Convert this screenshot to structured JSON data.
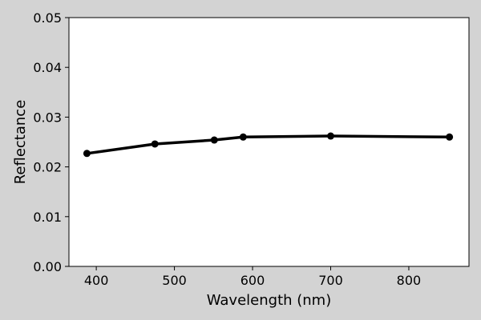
{
  "chart_data": {
    "type": "line",
    "title": "",
    "xlabel": "Wavelength (nm)",
    "ylabel": "Reflectance",
    "xlim": [
      365,
      877
    ],
    "ylim": [
      0.0,
      0.05
    ],
    "xticks": [
      400,
      500,
      600,
      700,
      800
    ],
    "xtick_labels": [
      "400",
      "500",
      "600",
      "700",
      "800"
    ],
    "yticks": [
      0.0,
      0.01,
      0.02,
      0.03,
      0.04,
      0.05
    ],
    "ytick_labels": [
      "0.00",
      "0.01",
      "0.02",
      "0.03",
      "0.04",
      "0.05"
    ],
    "grid": false,
    "series": [
      {
        "x": [
          388,
          475,
          551,
          588,
          700,
          852
        ],
        "y": [
          0.0227,
          0.0246,
          0.0254,
          0.026,
          0.0262,
          0.026
        ],
        "color": "#000000",
        "marker": "circle"
      }
    ]
  },
  "style": {
    "figure_background": "#d3d3d3",
    "plot_background": "#ffffff",
    "line_color": "#000000"
  }
}
